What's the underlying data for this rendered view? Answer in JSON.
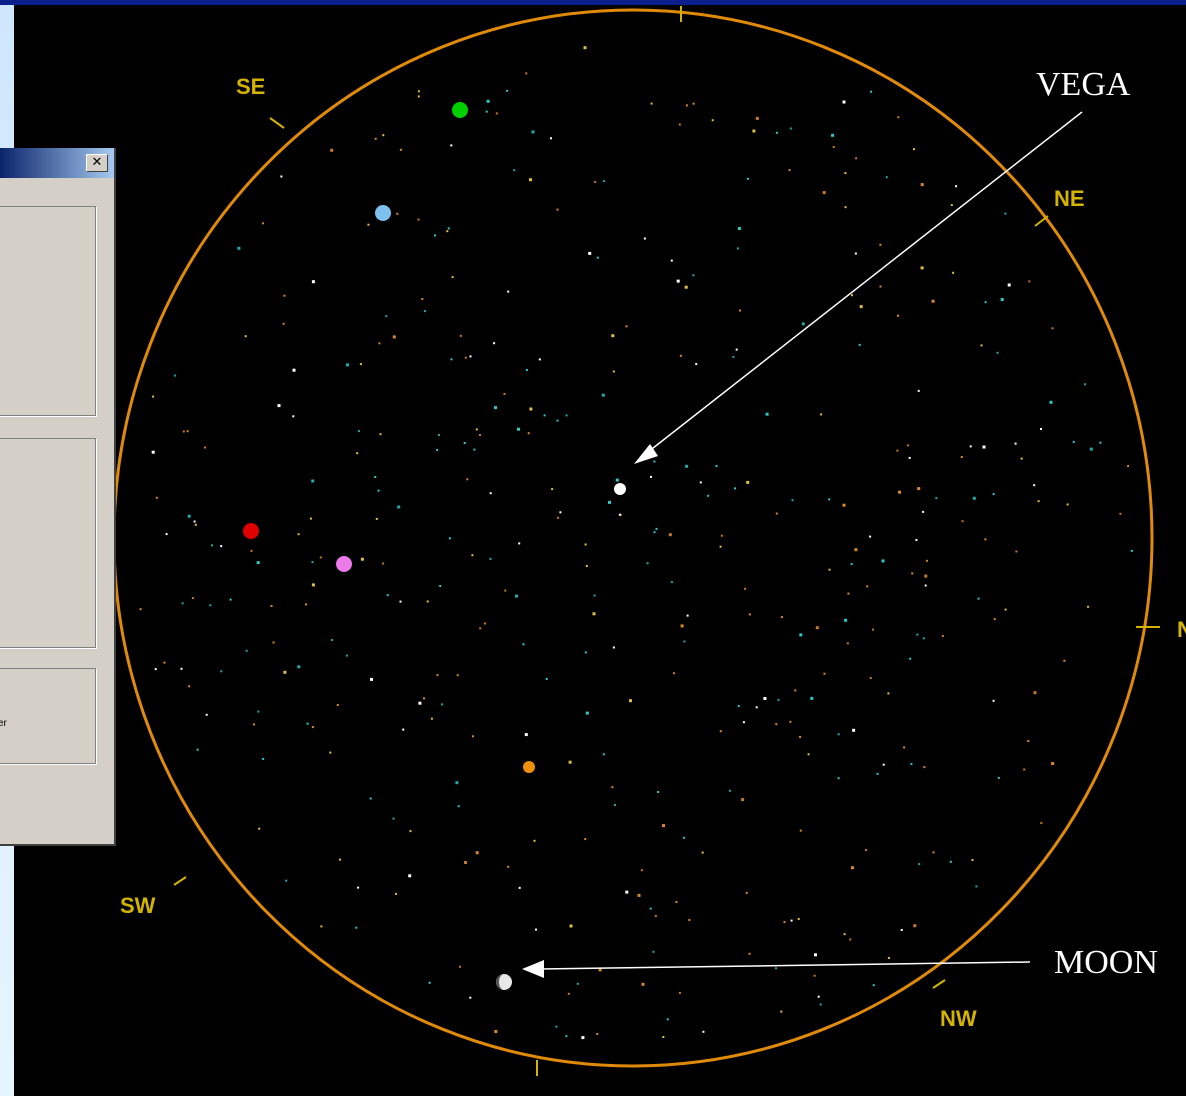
{
  "window": {
    "close_glyph": "✕"
  },
  "sky_map": {
    "horizon_color": "#e08a0a",
    "compass_color": "#d4b400",
    "directions": {
      "se": "SE",
      "ne": "NE",
      "sw": "SW",
      "nw": "NW",
      "n": "N"
    },
    "annotations": {
      "vega": "VEGA",
      "moon": "MOON"
    },
    "planets": [
      {
        "name": "green-planet",
        "color": "#00d000"
      },
      {
        "name": "blue-planet",
        "color": "#7ec0ee"
      },
      {
        "name": "red-planet",
        "color": "#e00000"
      },
      {
        "name": "pink-planet",
        "color": "#ea7ae8"
      },
      {
        "name": "orange-planet",
        "color": "#f0900a"
      },
      {
        "name": "vega-star",
        "color": "#ffffff"
      },
      {
        "name": "moon",
        "color": "#e8e8e8"
      }
    ]
  },
  "dialog_fragment": {
    "text": "er"
  }
}
